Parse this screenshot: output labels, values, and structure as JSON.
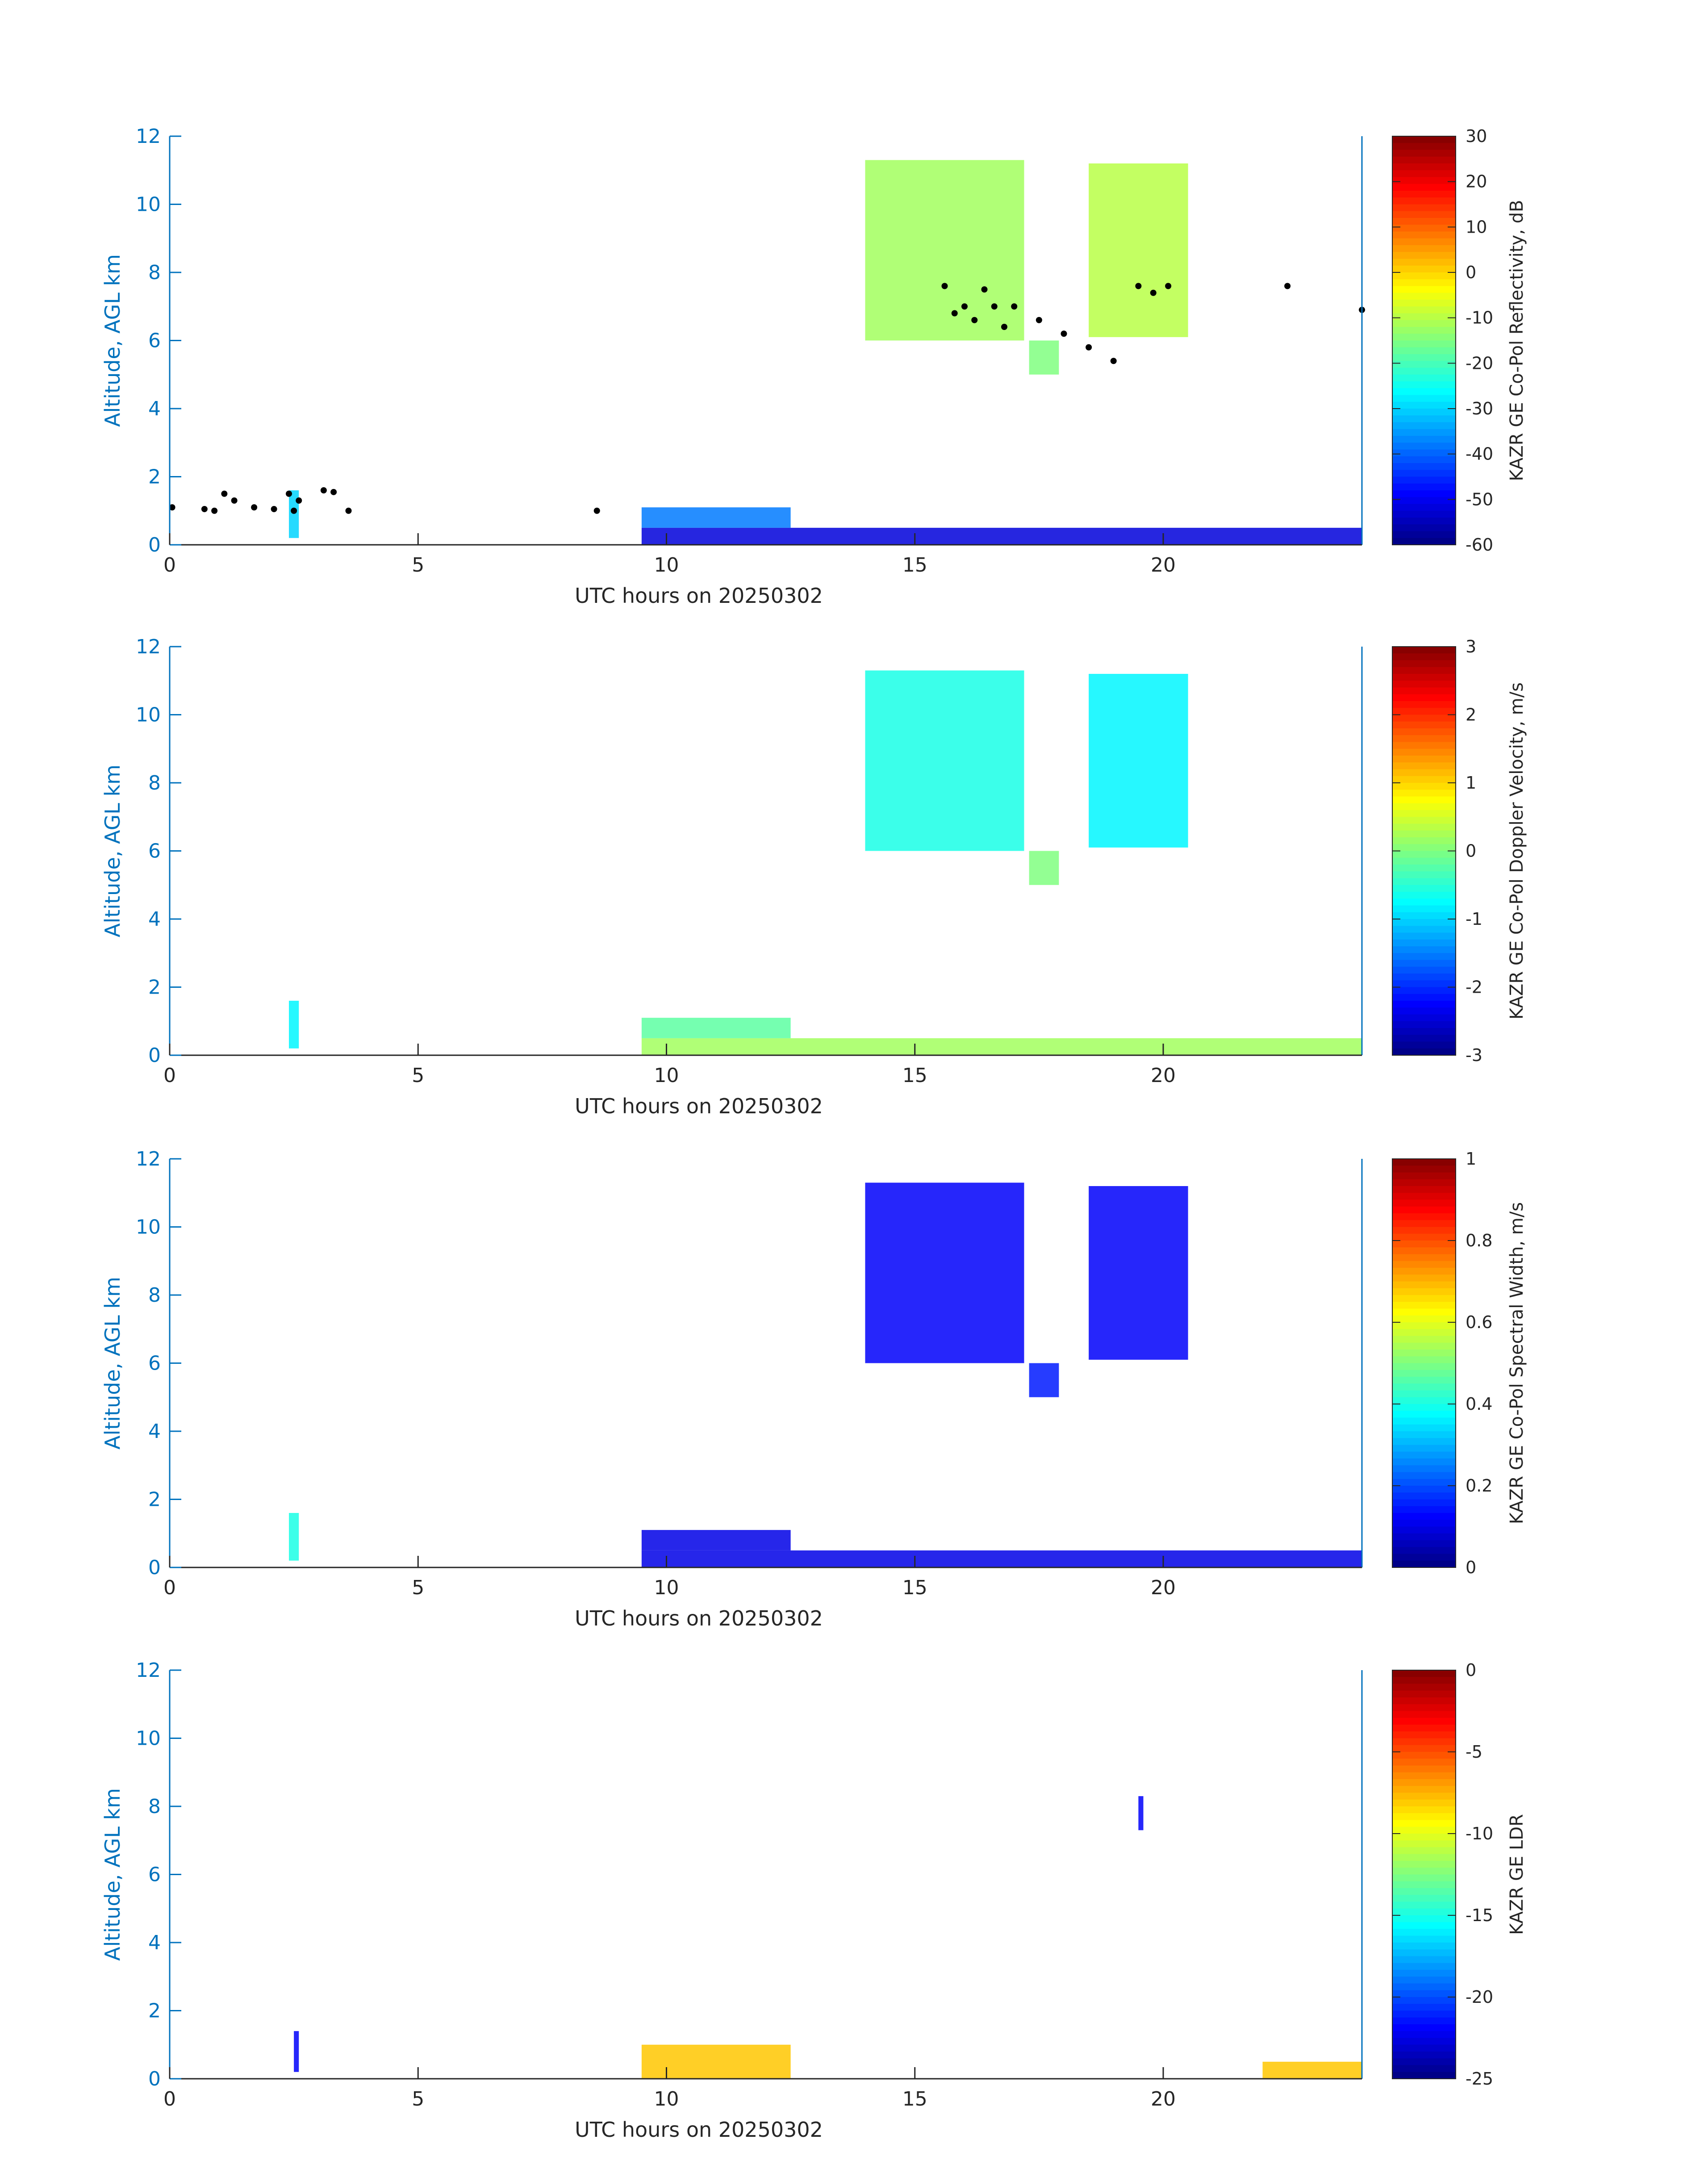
{
  "chart_data": [
    {
      "type": "heatmap",
      "xlabel": "UTC hours on 20250302",
      "ylabel": "Altitude, AGL km",
      "xlim": [
        0,
        24
      ],
      "ylim": [
        0,
        12
      ],
      "xticks": [
        "0",
        "5",
        "10",
        "15",
        "20"
      ],
      "yticks": [
        "0",
        "2",
        "4",
        "6",
        "8",
        "10",
        "12"
      ],
      "colorbar": {
        "label": "KAZR GE Co-Pol Reflectivity, dB",
        "range": [
          -60,
          30
        ],
        "ticks": [
          "30",
          "20",
          "10",
          "0",
          "-10",
          "-20",
          "-30",
          "-40",
          "-50",
          "-60"
        ]
      },
      "colormap": "jet",
      "regions": [
        {
          "t0": 14.0,
          "t1": 17.2,
          "z0": 6.0,
          "z1": 11.3,
          "value": -12
        },
        {
          "t0": 17.3,
          "t1": 17.9,
          "z0": 5.0,
          "z1": 6.0,
          "value": -15
        },
        {
          "t0": 18.5,
          "t1": 20.5,
          "z0": 6.1,
          "z1": 11.2,
          "value": -10
        },
        {
          "t0": 9.5,
          "t1": 24.0,
          "z0": 0.0,
          "z1": 0.5,
          "value": -52
        },
        {
          "t0": 9.5,
          "t1": 12.5,
          "z0": 0.5,
          "z1": 1.1,
          "value": -38
        },
        {
          "t0": 2.4,
          "t1": 2.6,
          "z0": 0.2,
          "z1": 1.6,
          "value": -30
        }
      ],
      "overlay_points": {
        "t": [
          0.05,
          0.7,
          0.9,
          1.1,
          1.3,
          1.7,
          2.1,
          2.4,
          2.5,
          2.6,
          3.1,
          3.3,
          3.6,
          8.6,
          15.6,
          15.8,
          16.0,
          16.2,
          16.4,
          16.6,
          16.8,
          17.0,
          17.5,
          18.0,
          18.5,
          19.0,
          19.5,
          19.8,
          20.1,
          22.5,
          24.0
        ],
        "z": [
          1.1,
          1.05,
          1.0,
          1.5,
          1.3,
          1.1,
          1.05,
          1.5,
          1.0,
          1.3,
          1.6,
          1.55,
          1.0,
          1.0,
          7.6,
          6.8,
          7.0,
          6.6,
          7.5,
          7.0,
          6.4,
          7.0,
          6.6,
          6.2,
          5.8,
          5.4,
          7.6,
          7.4,
          7.6,
          7.6,
          6.9
        ]
      }
    },
    {
      "type": "heatmap",
      "xlabel": "UTC hours on 20250302",
      "ylabel": "Altitude, AGL km",
      "xlim": [
        0,
        24
      ],
      "ylim": [
        0,
        12
      ],
      "xticks": [
        "0",
        "5",
        "10",
        "15",
        "20"
      ],
      "yticks": [
        "0",
        "2",
        "4",
        "6",
        "8",
        "10",
        "12"
      ],
      "colorbar": {
        "label": "KAZR GE Co-Pol Doppler Velocity, m/s",
        "range": [
          -3,
          3
        ],
        "ticks": [
          "3",
          "2",
          "1",
          "0",
          "-1",
          "-2",
          "-3"
        ]
      },
      "colormap": "jet",
      "regions": [
        {
          "t0": 14.0,
          "t1": 17.2,
          "z0": 6.0,
          "z1": 11.3,
          "value": -0.6
        },
        {
          "t0": 17.3,
          "t1": 17.9,
          "z0": 5.0,
          "z1": 6.0,
          "value": 0.0
        },
        {
          "t0": 18.5,
          "t1": 20.5,
          "z0": 6.1,
          "z1": 11.2,
          "value": -0.8
        },
        {
          "t0": 9.5,
          "t1": 24.0,
          "z0": 0.0,
          "z1": 0.5,
          "value": 0.2
        },
        {
          "t0": 9.5,
          "t1": 12.5,
          "z0": 0.5,
          "z1": 1.1,
          "value": -0.2
        },
        {
          "t0": 2.4,
          "t1": 2.6,
          "z0": 0.2,
          "z1": 1.6,
          "value": -0.8
        }
      ]
    },
    {
      "type": "heatmap",
      "xlabel": "UTC hours on 20250302",
      "ylabel": "Altitude, AGL km",
      "xlim": [
        0,
        24
      ],
      "ylim": [
        0,
        12
      ],
      "xticks": [
        "0",
        "5",
        "10",
        "15",
        "20"
      ],
      "yticks": [
        "0",
        "2",
        "4",
        "6",
        "8",
        "10",
        "12"
      ],
      "colorbar": {
        "label": "KAZR GE Co-Pol Spectral Width, m/s",
        "range": [
          0,
          1
        ],
        "ticks": [
          "1",
          "0.8",
          "0.6",
          "0.4",
          "0.2",
          "0"
        ]
      },
      "colormap": "jet",
      "regions": [
        {
          "t0": 14.0,
          "t1": 17.2,
          "z0": 6.0,
          "z1": 11.3,
          "value": 0.12
        },
        {
          "t0": 17.3,
          "t1": 17.9,
          "z0": 5.0,
          "z1": 6.0,
          "value": 0.15
        },
        {
          "t0": 18.5,
          "t1": 20.5,
          "z0": 6.1,
          "z1": 11.2,
          "value": 0.12
        },
        {
          "t0": 9.5,
          "t1": 24.0,
          "z0": 0.0,
          "z1": 0.5,
          "value": 0.1
        },
        {
          "t0": 9.5,
          "t1": 12.5,
          "z0": 0.5,
          "z1": 1.1,
          "value": 0.1
        },
        {
          "t0": 2.4,
          "t1": 2.6,
          "z0": 0.2,
          "z1": 1.6,
          "value": 0.4
        }
      ]
    },
    {
      "type": "heatmap",
      "xlabel": "UTC hours on 20250302",
      "ylabel": "Altitude, AGL km",
      "xlim": [
        0,
        24
      ],
      "ylim": [
        0,
        12
      ],
      "xticks": [
        "0",
        "5",
        "10",
        "15",
        "20"
      ],
      "yticks": [
        "0",
        "2",
        "4",
        "6",
        "8",
        "10",
        "12"
      ],
      "colorbar": {
        "label": "KAZR GE LDR",
        "range": [
          -25,
          0
        ],
        "ticks": [
          "0",
          "-5",
          "-10",
          "-15",
          "-20",
          "-25"
        ]
      },
      "colormap": "jet",
      "regions": [
        {
          "t0": 19.5,
          "t1": 19.6,
          "z0": 7.3,
          "z1": 8.3,
          "value": -22
        },
        {
          "t0": 2.5,
          "t1": 2.6,
          "z0": 0.2,
          "z1": 1.4,
          "value": -22
        },
        {
          "t0": 9.5,
          "t1": 12.5,
          "z0": 0.0,
          "z1": 1.0,
          "value": -8
        },
        {
          "t0": 22.0,
          "t1": 24.0,
          "z0": 0.0,
          "z1": 0.5,
          "value": -8
        }
      ]
    }
  ]
}
